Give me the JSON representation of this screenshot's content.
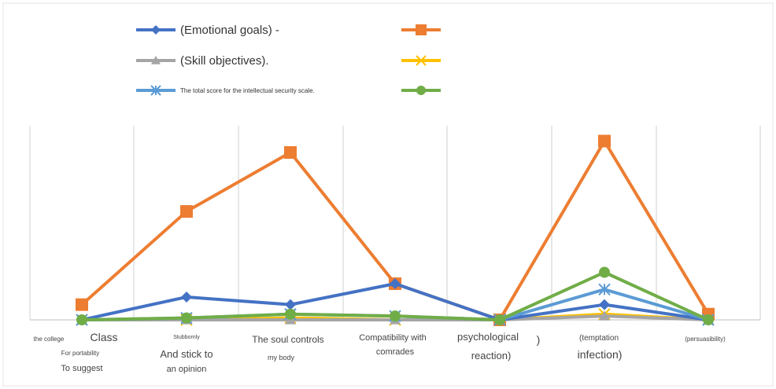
{
  "chart_data": {
    "type": "line",
    "title": "",
    "xlabel": "",
    "ylabel": "",
    "ylim": [
      0,
      100
    ],
    "grid": "vertical",
    "legend_position": "top",
    "categories": [
      [
        "the college",
        "Class",
        "For portability",
        "To suggest"
      ],
      [
        "Stubbornly",
        "And stick to",
        "an opinion"
      ],
      [
        "The soul controls",
        "my body"
      ],
      [
        "Compatibility with",
        "comrades"
      ],
      [
        "psychological",
        ")",
        "reaction)"
      ],
      [
        "(temptation",
        "infection)"
      ],
      [
        "(persuasibility)"
      ]
    ],
    "series": [
      {
        "name": "(Emotional goals) -",
        "color": "#4472c4",
        "marker": "diamond",
        "values": [
          0,
          12,
          8,
          19,
          0,
          8,
          0
        ]
      },
      {
        "name": "",
        "color": "#ed7d31",
        "marker": "square",
        "values": [
          8,
          57,
          88,
          19,
          0,
          94,
          3
        ]
      },
      {
        "name": "(Skill objectives).",
        "color": "#a5a5a5",
        "marker": "triangle",
        "values": [
          0,
          0,
          0,
          0,
          0,
          2,
          0
        ]
      },
      {
        "name": "",
        "color": "#ffc000",
        "marker": "x",
        "values": [
          0,
          0,
          1,
          0,
          0,
          3,
          0
        ]
      },
      {
        "name": "The total score for the intellectual security scale.",
        "color": "#5b9bd5",
        "marker": "star",
        "values": [
          0,
          1,
          3,
          2,
          0,
          16,
          0
        ]
      },
      {
        "name": "",
        "color": "#70ad47",
        "marker": "circle",
        "values": [
          0,
          1,
          3,
          2,
          0,
          25,
          0
        ]
      }
    ]
  }
}
